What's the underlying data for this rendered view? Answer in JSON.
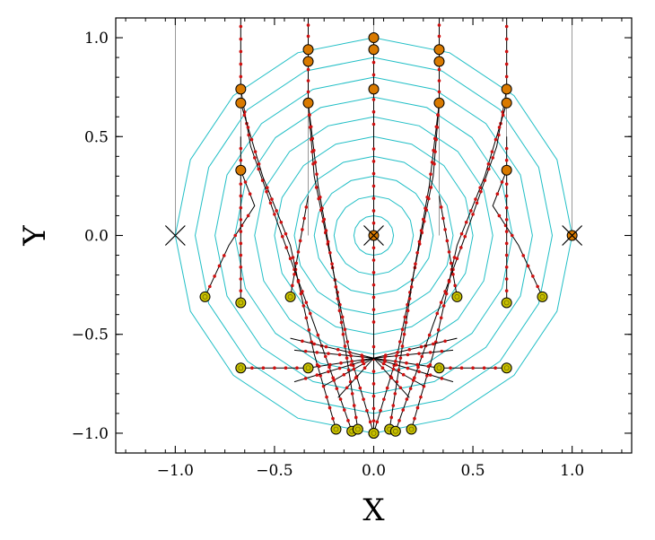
{
  "chart_data": {
    "type": "scatter",
    "title": "",
    "xlabel": "X",
    "ylabel": "Y",
    "xlim": [
      -1.3,
      1.3
    ],
    "ylim": [
      -1.1,
      1.1
    ],
    "grid": false,
    "x_ticks": [
      -1.0,
      -0.5,
      0.0,
      0.5,
      1.0
    ],
    "x_tick_labels": [
      "−1.0",
      "−0.5",
      "0.0",
      "0.5",
      "1.0"
    ],
    "y_ticks": [
      -1.0,
      -0.5,
      0.0,
      0.5,
      1.0
    ],
    "y_tick_labels": [
      "−1.0",
      "−0.5",
      "0.0",
      "0.5",
      "1.0"
    ],
    "colors": {
      "contour": "#22bfc6",
      "start_marker": "#d97a00",
      "end_marker": "#c8c000",
      "path_point": "#d01010",
      "path_line": "#000000",
      "cross": "#000000"
    },
    "contour_radii": [
      0.1,
      0.2,
      0.3,
      0.4,
      0.5,
      0.6,
      0.7,
      0.8,
      0.9,
      1.0
    ],
    "contour_sides": 16,
    "crosses": [
      [
        -1.0,
        0.0
      ],
      [
        0.0,
        0.0
      ],
      [
        1.0,
        0.0
      ]
    ],
    "start_points": [
      [
        0.0,
        1.0
      ],
      [
        0.0,
        0.94
      ],
      [
        0.0,
        0.74
      ],
      [
        -0.33,
        0.94
      ],
      [
        -0.33,
        0.88
      ],
      [
        -0.33,
        0.67
      ],
      [
        0.33,
        0.94
      ],
      [
        0.33,
        0.88
      ],
      [
        0.33,
        0.67
      ],
      [
        -0.67,
        0.74
      ],
      [
        -0.67,
        0.67
      ],
      [
        -0.67,
        0.33
      ],
      [
        0.67,
        0.74
      ],
      [
        0.67,
        0.67
      ],
      [
        0.67,
        0.33
      ],
      [
        0.0,
        0.0
      ],
      [
        1.0,
        0.0
      ]
    ],
    "end_points": [
      [
        -0.85,
        -0.31
      ],
      [
        -0.67,
        -0.34
      ],
      [
        -0.42,
        -0.31
      ],
      [
        0.42,
        -0.31
      ],
      [
        0.67,
        -0.34
      ],
      [
        0.85,
        -0.31
      ],
      [
        -0.67,
        -0.67
      ],
      [
        -0.33,
        -0.67
      ],
      [
        0.33,
        -0.67
      ],
      [
        0.67,
        -0.67
      ],
      [
        -0.19,
        -0.98
      ],
      [
        -0.11,
        -0.99
      ],
      [
        -0.08,
        -0.98
      ],
      [
        0.0,
        -1.0
      ],
      [
        0.0,
        -1.0
      ],
      [
        0.08,
        -0.98
      ],
      [
        0.11,
        -0.99
      ],
      [
        0.19,
        -0.98
      ]
    ],
    "vertical_guides": [
      -1.0,
      -0.67,
      -0.33,
      0.0,
      0.33,
      0.67,
      1.0
    ],
    "paths": [
      [
        [
          0.0,
          1.0
        ],
        [
          0.0,
          0.5
        ],
        [
          0.0,
          0.0
        ],
        [
          0.0,
          -0.5
        ],
        [
          0.0,
          -1.0
        ]
      ],
      [
        [
          -0.33,
          1.12
        ],
        [
          -0.33,
          0.67
        ],
        [
          -0.3,
          0.3
        ],
        [
          -0.22,
          -0.1
        ],
        [
          -0.12,
          -0.6
        ],
        [
          0.0,
          -1.0
        ]
      ],
      [
        [
          0.33,
          1.12
        ],
        [
          0.33,
          0.67
        ],
        [
          0.3,
          0.3
        ],
        [
          0.22,
          -0.1
        ],
        [
          0.12,
          -0.6
        ],
        [
          0.0,
          -1.0
        ]
      ],
      [
        [
          -0.67,
          1.12
        ],
        [
          -0.67,
          0.74
        ],
        [
          -0.62,
          0.45
        ],
        [
          -0.48,
          0.05
        ],
        [
          -0.3,
          -0.45
        ],
        [
          -0.11,
          -0.99
        ]
      ],
      [
        [
          0.67,
          1.12
        ],
        [
          0.67,
          0.74
        ],
        [
          0.62,
          0.45
        ],
        [
          0.48,
          0.05
        ],
        [
          0.3,
          -0.45
        ],
        [
          0.11,
          -0.99
        ]
      ],
      [
        [
          -0.67,
          0.67
        ],
        [
          -0.56,
          0.3
        ],
        [
          -0.42,
          -0.05
        ],
        [
          -0.3,
          -0.6
        ],
        [
          -0.19,
          -0.98
        ]
      ],
      [
        [
          0.67,
          0.67
        ],
        [
          0.56,
          0.3
        ],
        [
          0.42,
          -0.05
        ],
        [
          0.3,
          -0.6
        ],
        [
          0.19,
          -0.98
        ]
      ],
      [
        [
          -0.33,
          0.67
        ],
        [
          -0.28,
          0.25
        ],
        [
          -0.2,
          -0.2
        ],
        [
          -0.08,
          -0.98
        ]
      ],
      [
        [
          0.33,
          0.67
        ],
        [
          0.28,
          0.25
        ],
        [
          0.2,
          -0.2
        ],
        [
          0.08,
          -0.98
        ]
      ],
      [
        [
          -0.67,
          0.33
        ],
        [
          -0.6,
          0.15
        ],
        [
          -0.73,
          -0.05
        ],
        [
          -0.85,
          -0.31
        ]
      ],
      [
        [
          0.67,
          0.33
        ],
        [
          0.6,
          0.15
        ],
        [
          0.73,
          -0.05
        ],
        [
          0.85,
          -0.31
        ]
      ],
      [
        [
          -0.67,
          0.5
        ],
        [
          -0.67,
          -0.34
        ]
      ],
      [
        [
          0.67,
          0.5
        ],
        [
          0.67,
          -0.34
        ]
      ],
      [
        [
          -0.33,
          0.2
        ],
        [
          -0.42,
          -0.31
        ]
      ],
      [
        [
          0.33,
          0.2
        ],
        [
          0.42,
          -0.31
        ]
      ],
      [
        [
          -0.42,
          -0.52
        ],
        [
          0.0,
          -0.62
        ],
        [
          0.42,
          -0.52
        ]
      ],
      [
        [
          -0.4,
          -0.58
        ],
        [
          0.0,
          -0.62
        ],
        [
          0.4,
          -0.58
        ]
      ],
      [
        [
          -0.67,
          -0.67
        ],
        [
          -0.33,
          -0.67
        ],
        [
          0.0,
          -0.62
        ],
        [
          0.33,
          -0.67
        ],
        [
          0.67,
          -0.67
        ]
      ],
      [
        [
          -0.4,
          -0.74
        ],
        [
          0.0,
          -0.62
        ],
        [
          0.4,
          -0.74
        ]
      ],
      [
        [
          -0.25,
          -0.76
        ],
        [
          0.0,
          -0.62
        ],
        [
          0.25,
          -0.76
        ]
      ],
      [
        [
          -0.18,
          -0.82
        ],
        [
          0.0,
          -0.62
        ],
        [
          0.18,
          -0.82
        ]
      ]
    ]
  }
}
